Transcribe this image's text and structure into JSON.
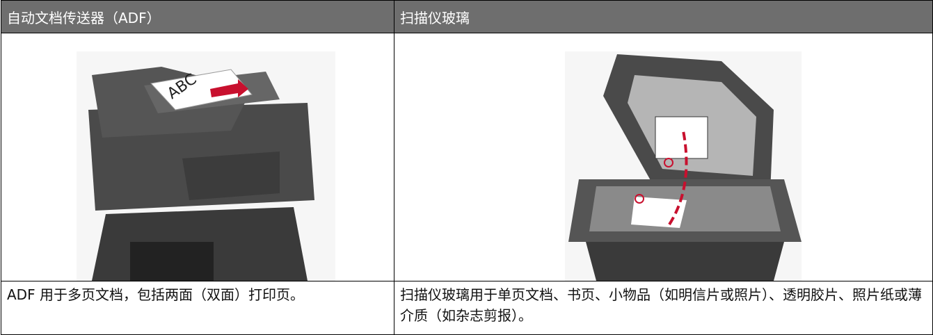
{
  "table": {
    "headers": [
      "自动文档传送器（ADF）",
      "扫描仪玻璃"
    ],
    "rows": [
      [
        "ADF 用于多页文档，包括两面（双面）打印页。",
        "扫描仪玻璃用于单页文档、书页、小物品（如明信片或照片）、透明胶片、照片纸或薄介质（如杂志剪报）。"
      ]
    ]
  }
}
